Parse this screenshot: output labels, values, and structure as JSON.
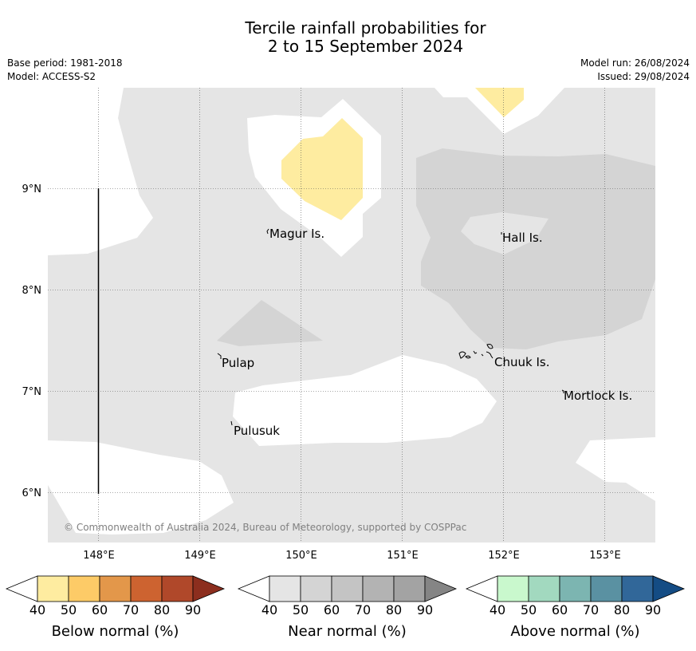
{
  "title": {
    "line1": "Tercile rainfall probabilities for",
    "line2": "2 to 15 September 2024"
  },
  "meta": {
    "base_period": "Base period: 1981-2018",
    "model": "Model: ACCESS-S2",
    "model_run": "Model run: 26/08/2024",
    "issued": "Issued: 29/08/2024"
  },
  "map": {
    "lon_ticks": [
      "148°E",
      "149°E",
      "150°E",
      "151°E",
      "152°E",
      "153°E"
    ],
    "lat_ticks": [
      "9°N",
      "8°N",
      "7°N",
      "6°N"
    ],
    "places": [
      "Magur Is.",
      "Hall Is.",
      "Pulap",
      "Chuuk Is.",
      "Mortlock Is.",
      "Pulusuk"
    ],
    "copyright": "© Commonwealth of Australia 2024, Bureau of Meteorology, supported by COSPPac"
  },
  "legends": [
    {
      "label": "Below normal (%)",
      "ticks": [
        "40",
        "50",
        "60",
        "70",
        "80",
        "90"
      ],
      "colors": [
        "#ffffff",
        "#feeca0",
        "#fdcb67",
        "#e3974a",
        "#cd6330",
        "#b0482a",
        "#8c2e1e"
      ]
    },
    {
      "label": "Near normal (%)",
      "ticks": [
        "40",
        "50",
        "60",
        "70",
        "80",
        "90"
      ],
      "colors": [
        "#ffffff",
        "#e5e5e5",
        "#d4d4d4",
        "#c4c4c4",
        "#b3b3b3",
        "#a3a3a3",
        "#858585"
      ]
    },
    {
      "label": "Above normal (%)",
      "ticks": [
        "40",
        "50",
        "60",
        "70",
        "80",
        "90"
      ],
      "colors": [
        "#ffffff",
        "#c9f8cd",
        "#a2d9bf",
        "#7cb5b1",
        "#5a91a2",
        "#316799",
        "#144c84"
      ]
    }
  ]
}
